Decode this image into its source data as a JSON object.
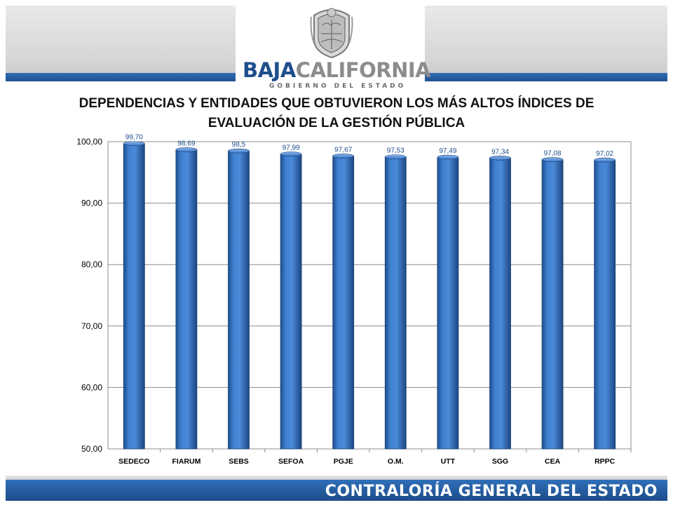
{
  "header": {
    "brand_part1": "BAJA",
    "brand_part2": "CALIFORNIA",
    "brand_sub": "GOBIERNO DEL ESTADO",
    "seal_icon": "state-seal-icon"
  },
  "title_line1": "DEPENDENCIAS Y ENTIDADES QUE OBTUVIERON LOS MÁS ALTOS ÍNDICES DE",
  "title_line2": "EVALUACIÓN DE LA GESTIÓN PÚBLICA",
  "footer": {
    "text": "CONTRALORÍA GENERAL DEL ESTADO"
  },
  "colors": {
    "bar": "#3a78c9",
    "bar_dark": "#1f4f8f",
    "band_blue": "#1f4f8f",
    "label": "#1f4e8c"
  },
  "chart_data": {
    "type": "bar",
    "categories": [
      "SEDECO",
      "FIARUM",
      "SEBS",
      "SEFOA",
      "PGJE",
      "O.M.",
      "UTT",
      "SGG",
      "CEA",
      "RPPC"
    ],
    "values": [
      99.7,
      98.69,
      98.5,
      97.99,
      97.67,
      97.53,
      97.49,
      97.34,
      97.08,
      97.02
    ],
    "value_labels": [
      "99,70",
      "98,69",
      "98,5",
      "97,99",
      "97,67",
      "97,53",
      "97,49",
      "97,34",
      "97,08",
      "97,02"
    ],
    "ylim": [
      50,
      100
    ],
    "yticks": [
      50,
      60,
      70,
      80,
      90,
      100
    ],
    "ytick_labels": [
      "50,00",
      "60,00",
      "70,00",
      "80,00",
      "90,00",
      "100,00"
    ],
    "title": "DEPENDENCIAS Y ENTIDADES QUE OBTUVIERON LOS MÁS ALTOS ÍNDICES DE EVALUACIÓN DE LA GESTIÓN PÚBLICA",
    "xlabel": "",
    "ylabel": "",
    "grid": true,
    "legend": "none"
  }
}
